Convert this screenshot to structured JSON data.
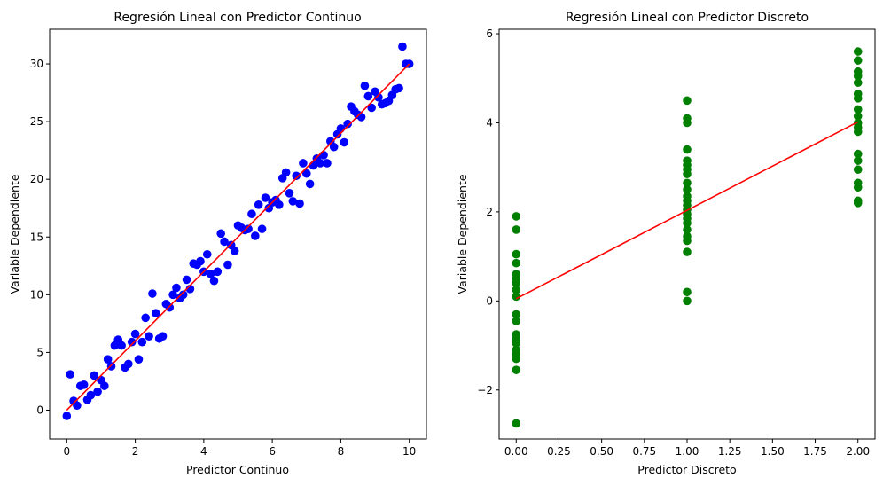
{
  "chart_data": [
    {
      "type": "scatter",
      "title": "Regresión Lineal con Predictor Continuo",
      "xlabel": "Predictor Continuo",
      "ylabel": "Variable Dependiente",
      "xlim": [
        -0.5,
        10.5
      ],
      "ylim": [
        -2.5,
        33
      ],
      "xticks": [
        0,
        2,
        4,
        6,
        8,
        10
      ],
      "xtick_labels": [
        "0",
        "2",
        "4",
        "6",
        "8",
        "10"
      ],
      "yticks": [
        0,
        5,
        10,
        15,
        20,
        25,
        30
      ],
      "ytick_labels": [
        "0",
        "5",
        "10",
        "15",
        "20",
        "25",
        "30"
      ],
      "grid": false,
      "point_color": "#0000ff",
      "line_color": "#ff0000",
      "points": [
        [
          0.0,
          -0.5
        ],
        [
          0.1,
          3.1
        ],
        [
          0.2,
          0.8
        ],
        [
          0.3,
          0.4
        ],
        [
          0.4,
          2.1
        ],
        [
          0.5,
          2.2
        ],
        [
          0.6,
          0.9
        ],
        [
          0.7,
          1.3
        ],
        [
          0.8,
          3.0
        ],
        [
          0.9,
          1.6
        ],
        [
          1.0,
          2.6
        ],
        [
          1.1,
          2.1
        ],
        [
          1.2,
          4.4
        ],
        [
          1.3,
          3.8
        ],
        [
          1.4,
          5.6
        ],
        [
          1.5,
          6.1
        ],
        [
          1.6,
          5.6
        ],
        [
          1.7,
          3.7
        ],
        [
          1.8,
          4.0
        ],
        [
          1.9,
          5.9
        ],
        [
          2.0,
          6.6
        ],
        [
          2.1,
          4.4
        ],
        [
          2.2,
          5.9
        ],
        [
          2.3,
          8.0
        ],
        [
          2.4,
          6.4
        ],
        [
          2.5,
          10.1
        ],
        [
          2.6,
          8.4
        ],
        [
          2.7,
          6.2
        ],
        [
          2.8,
          6.4
        ],
        [
          2.9,
          9.2
        ],
        [
          3.0,
          8.9
        ],
        [
          3.1,
          10.0
        ],
        [
          3.2,
          10.6
        ],
        [
          3.3,
          9.7
        ],
        [
          3.4,
          10.0
        ],
        [
          3.5,
          11.3
        ],
        [
          3.6,
          10.5
        ],
        [
          3.7,
          12.7
        ],
        [
          3.8,
          12.6
        ],
        [
          3.9,
          12.9
        ],
        [
          4.0,
          12.0
        ],
        [
          4.1,
          13.5
        ],
        [
          4.2,
          11.8
        ],
        [
          4.3,
          11.2
        ],
        [
          4.4,
          12.0
        ],
        [
          4.5,
          15.3
        ],
        [
          4.6,
          14.6
        ],
        [
          4.7,
          12.6
        ],
        [
          4.8,
          14.3
        ],
        [
          4.9,
          13.8
        ],
        [
          5.0,
          16.0
        ],
        [
          5.1,
          15.8
        ],
        [
          5.2,
          15.6
        ],
        [
          5.3,
          15.7
        ],
        [
          5.4,
          17.0
        ],
        [
          5.5,
          15.1
        ],
        [
          5.6,
          17.8
        ],
        [
          5.7,
          15.7
        ],
        [
          5.8,
          18.4
        ],
        [
          5.9,
          17.5
        ],
        [
          6.0,
          18.0
        ],
        [
          6.1,
          18.2
        ],
        [
          6.2,
          17.8
        ],
        [
          6.3,
          20.1
        ],
        [
          6.4,
          20.6
        ],
        [
          6.5,
          18.8
        ],
        [
          6.6,
          18.1
        ],
        [
          6.7,
          20.3
        ],
        [
          6.8,
          17.9
        ],
        [
          6.9,
          21.4
        ],
        [
          7.0,
          20.5
        ],
        [
          7.1,
          19.6
        ],
        [
          7.2,
          21.2
        ],
        [
          7.3,
          21.8
        ],
        [
          7.4,
          21.4
        ],
        [
          7.5,
          22.1
        ],
        [
          7.6,
          21.4
        ],
        [
          7.7,
          23.3
        ],
        [
          7.8,
          22.8
        ],
        [
          7.9,
          23.9
        ],
        [
          8.0,
          24.4
        ],
        [
          8.1,
          23.2
        ],
        [
          8.2,
          24.8
        ],
        [
          8.3,
          26.3
        ],
        [
          8.4,
          25.9
        ],
        [
          8.5,
          25.6
        ],
        [
          8.6,
          25.4
        ],
        [
          8.7,
          28.1
        ],
        [
          8.8,
          27.2
        ],
        [
          8.9,
          26.2
        ],
        [
          9.0,
          27.6
        ],
        [
          9.1,
          27.1
        ],
        [
          9.2,
          26.5
        ],
        [
          9.3,
          26.6
        ],
        [
          9.4,
          26.8
        ],
        [
          9.5,
          27.3
        ],
        [
          9.6,
          27.8
        ],
        [
          9.7,
          27.9
        ],
        [
          9.8,
          31.5
        ],
        [
          9.9,
          30.0
        ],
        [
          10.0,
          30.0
        ]
      ],
      "fit_line": [
        [
          0,
          0
        ],
        [
          10,
          30
        ]
      ]
    },
    {
      "type": "scatter",
      "title": "Regresión Lineal con Predictor Discreto",
      "xlabel": "Predictor Discreto",
      "ylabel": "Variable Dependiente",
      "xlim": [
        -0.1,
        2.1
      ],
      "ylim": [
        -3.1,
        6.1
      ],
      "xticks": [
        0,
        0.25,
        0.5,
        0.75,
        1.0,
        1.25,
        1.5,
        1.75,
        2.0
      ],
      "xtick_labels": [
        "0.00",
        "0.25",
        "0.50",
        "0.75",
        "1.00",
        "1.25",
        "1.50",
        "1.75",
        "2.00"
      ],
      "yticks": [
        -2,
        0,
        2,
        4,
        6
      ],
      "ytick_labels": [
        "−2",
        "0",
        "2",
        "4",
        "6"
      ],
      "grid": false,
      "point_color": "#008000",
      "line_color": "#ff0000",
      "points": [
        [
          0,
          1.9
        ],
        [
          0,
          1.6
        ],
        [
          0,
          1.05
        ],
        [
          0,
          0.85
        ],
        [
          0,
          0.6
        ],
        [
          0,
          0.5
        ],
        [
          0,
          0.4
        ],
        [
          0,
          0.25
        ],
        [
          0,
          0.1
        ],
        [
          0,
          -0.3
        ],
        [
          0,
          -0.45
        ],
        [
          0,
          -0.75
        ],
        [
          0,
          -0.85
        ],
        [
          0,
          -0.95
        ],
        [
          0,
          -1.1
        ],
        [
          0,
          -1.2
        ],
        [
          0,
          -1.3
        ],
        [
          0,
          -1.55
        ],
        [
          0,
          -2.75
        ],
        [
          1,
          4.5
        ],
        [
          1,
          4.1
        ],
        [
          1,
          4.0
        ],
        [
          1,
          3.4
        ],
        [
          1,
          3.15
        ],
        [
          1,
          3.05
        ],
        [
          1,
          2.95
        ],
        [
          1,
          2.85
        ],
        [
          1,
          2.65
        ],
        [
          1,
          2.5
        ],
        [
          1,
          2.35
        ],
        [
          1,
          2.25
        ],
        [
          1,
          2.15
        ],
        [
          1,
          2.05
        ],
        [
          1,
          1.95
        ],
        [
          1,
          1.85
        ],
        [
          1,
          1.75
        ],
        [
          1,
          1.6
        ],
        [
          1,
          1.45
        ],
        [
          1,
          1.35
        ],
        [
          1,
          1.1
        ],
        [
          1,
          0.2
        ],
        [
          1,
          0.0
        ],
        [
          2,
          5.6
        ],
        [
          2,
          5.4
        ],
        [
          2,
          5.15
        ],
        [
          2,
          5.05
        ],
        [
          2,
          4.9
        ],
        [
          2,
          4.65
        ],
        [
          2,
          4.55
        ],
        [
          2,
          4.3
        ],
        [
          2,
          4.15
        ],
        [
          2,
          4.0
        ],
        [
          2,
          3.9
        ],
        [
          2,
          3.8
        ],
        [
          2,
          3.3
        ],
        [
          2,
          3.15
        ],
        [
          2,
          2.95
        ],
        [
          2,
          2.65
        ],
        [
          2,
          2.55
        ],
        [
          2,
          2.25
        ],
        [
          2,
          2.2
        ]
      ],
      "fit_line": [
        [
          0,
          0.05
        ],
        [
          2,
          4.02
        ]
      ]
    }
  ]
}
